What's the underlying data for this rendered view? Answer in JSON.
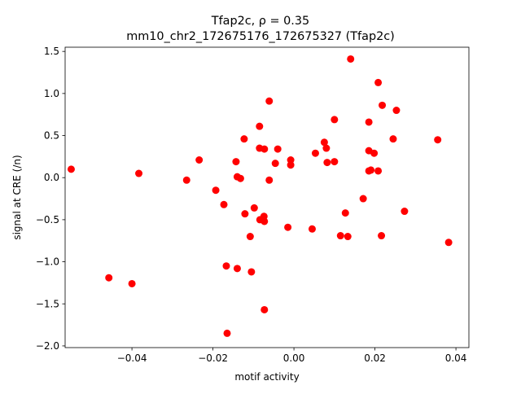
{
  "chart_data": {
    "type": "scatter",
    "title": "Tfap2c, ρ = 0.35",
    "subtitle": "mm10_chr2_172675176_172675327 (Tfap2c)",
    "xlabel": "motif activity",
    "ylabel": "signal at CRE (/n)",
    "xlim": [
      -0.0565,
      0.0432
    ],
    "ylim": [
      -2.02,
      1.55
    ],
    "xticks": [
      -0.04,
      -0.02,
      0.0,
      0.02,
      0.04
    ],
    "xtick_labels": [
      "−0.04",
      "−0.02",
      "0.00",
      "0.02",
      "0.04"
    ],
    "yticks": [
      -2.0,
      -1.5,
      -1.0,
      -0.5,
      0.0,
      0.5,
      1.0,
      1.5
    ],
    "ytick_labels": [
      "−2.0",
      "−1.5",
      "−1.0",
      "−0.5",
      "0.0",
      "0.5",
      "1.0",
      "1.5"
    ],
    "grid": false,
    "marker_color": "#ff0000",
    "points": [
      {
        "x": -0.055,
        "y": 0.1
      },
      {
        "x": -0.0457,
        "y": -1.19
      },
      {
        "x": -0.04,
        "y": -1.26
      },
      {
        "x": -0.0383,
        "y": 0.05
      },
      {
        "x": -0.0265,
        "y": -0.03
      },
      {
        "x": -0.0234,
        "y": 0.21
      },
      {
        "x": -0.0193,
        "y": -0.15
      },
      {
        "x": -0.0173,
        "y": -0.32
      },
      {
        "x": -0.0167,
        "y": -1.05
      },
      {
        "x": -0.0165,
        "y": -1.85
      },
      {
        "x": -0.0143,
        "y": 0.19
      },
      {
        "x": -0.014,
        "y": 0.01
      },
      {
        "x": -0.014,
        "y": -1.08
      },
      {
        "x": -0.0132,
        "y": -0.01
      },
      {
        "x": -0.0123,
        "y": 0.46
      },
      {
        "x": -0.0121,
        "y": -0.43
      },
      {
        "x": -0.0108,
        "y": -0.7
      },
      {
        "x": -0.0105,
        "y": -1.12
      },
      {
        "x": -0.0098,
        "y": -0.36
      },
      {
        "x": -0.0085,
        "y": 0.61
      },
      {
        "x": -0.0085,
        "y": 0.35
      },
      {
        "x": -0.0084,
        "y": -0.5
      },
      {
        "x": -0.0074,
        "y": -0.46
      },
      {
        "x": -0.0073,
        "y": -0.52
      },
      {
        "x": -0.0073,
        "y": 0.34
      },
      {
        "x": -0.0073,
        "y": -1.57
      },
      {
        "x": -0.0061,
        "y": 0.91
      },
      {
        "x": -0.0061,
        "y": -0.03
      },
      {
        "x": -0.0046,
        "y": 0.17
      },
      {
        "x": -0.004,
        "y": 0.34
      },
      {
        "x": -0.0015,
        "y": -0.59
      },
      {
        "x": -0.0008,
        "y": 0.21
      },
      {
        "x": -0.0008,
        "y": 0.15
      },
      {
        "x": 0.0045,
        "y": -0.61
      },
      {
        "x": 0.0053,
        "y": 0.29
      },
      {
        "x": 0.0075,
        "y": 0.42
      },
      {
        "x": 0.008,
        "y": 0.35
      },
      {
        "x": 0.0082,
        "y": 0.18
      },
      {
        "x": 0.01,
        "y": 0.69
      },
      {
        "x": 0.01,
        "y": 0.19
      },
      {
        "x": 0.0115,
        "y": -0.69
      },
      {
        "x": 0.0127,
        "y": -0.42
      },
      {
        "x": 0.0133,
        "y": -0.7
      },
      {
        "x": 0.014,
        "y": 1.41
      },
      {
        "x": 0.0171,
        "y": -0.25
      },
      {
        "x": 0.0185,
        "y": 0.66
      },
      {
        "x": 0.0185,
        "y": 0.32
      },
      {
        "x": 0.0185,
        "y": 0.08
      },
      {
        "x": 0.019,
        "y": 0.09
      },
      {
        "x": 0.0198,
        "y": 0.29
      },
      {
        "x": 0.0208,
        "y": 1.13
      },
      {
        "x": 0.0208,
        "y": 0.08
      },
      {
        "x": 0.0216,
        "y": -0.69
      },
      {
        "x": 0.0218,
        "y": 0.86
      },
      {
        "x": 0.0245,
        "y": 0.46
      },
      {
        "x": 0.0253,
        "y": 0.8
      },
      {
        "x": 0.0273,
        "y": -0.4
      },
      {
        "x": 0.0355,
        "y": 0.45
      },
      {
        "x": 0.0382,
        "y": -0.77
      }
    ]
  }
}
